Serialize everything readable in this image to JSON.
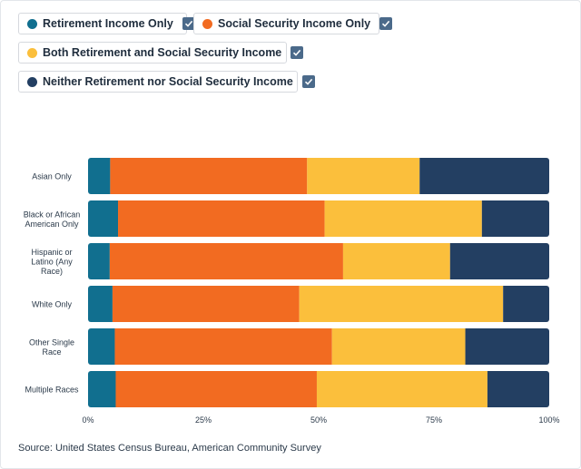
{
  "legend": [
    {
      "label": "Retirement Income Only",
      "color": "#116f8f",
      "checked": true
    },
    {
      "label": "Social Security Income Only",
      "color": "#f26b21",
      "checked": true
    },
    {
      "label": "Both Retirement and Social Security Income",
      "color": "#fbbf3c",
      "checked": true
    },
    {
      "label": "Neither Retirement nor Social Security Income",
      "color": "#233f62",
      "checked": true
    }
  ],
  "source": "Source: United States Census Bureau, American Community Survey",
  "chart_data": {
    "type": "bar",
    "orientation": "horizontal",
    "stacked": true,
    "categories": [
      [
        "Asian Only"
      ],
      [
        "Black or African",
        "American Only"
      ],
      [
        "Hispanic or",
        "Latino (Any",
        "Race)"
      ],
      [
        "White Only"
      ],
      [
        "Other Single",
        "Race"
      ],
      [
        "Multiple Races"
      ]
    ],
    "series": [
      {
        "name": "Retirement Income Only",
        "color": "#116f8f",
        "values": [
          4.8,
          6.5,
          4.7,
          5.3,
          5.8,
          6.0
        ]
      },
      {
        "name": "Social Security Income Only",
        "color": "#f26b21",
        "values": [
          42.7,
          44.8,
          50.6,
          40.5,
          47.1,
          43.6
        ]
      },
      {
        "name": "Both Retirement and Social Security Income",
        "color": "#fbbf3c",
        "values": [
          24.4,
          34.1,
          23.2,
          44.2,
          28.9,
          37.0
        ]
      },
      {
        "name": "Neither Retirement nor Social Security Income",
        "color": "#233f62",
        "values": [
          28.1,
          14.6,
          21.5,
          10.0,
          18.2,
          13.4
        ]
      }
    ],
    "xlim": [
      0,
      100
    ],
    "xticks": [
      "0%",
      "25%",
      "50%",
      "75%",
      "100%"
    ],
    "grid": false,
    "legend_position": "top-left"
  }
}
